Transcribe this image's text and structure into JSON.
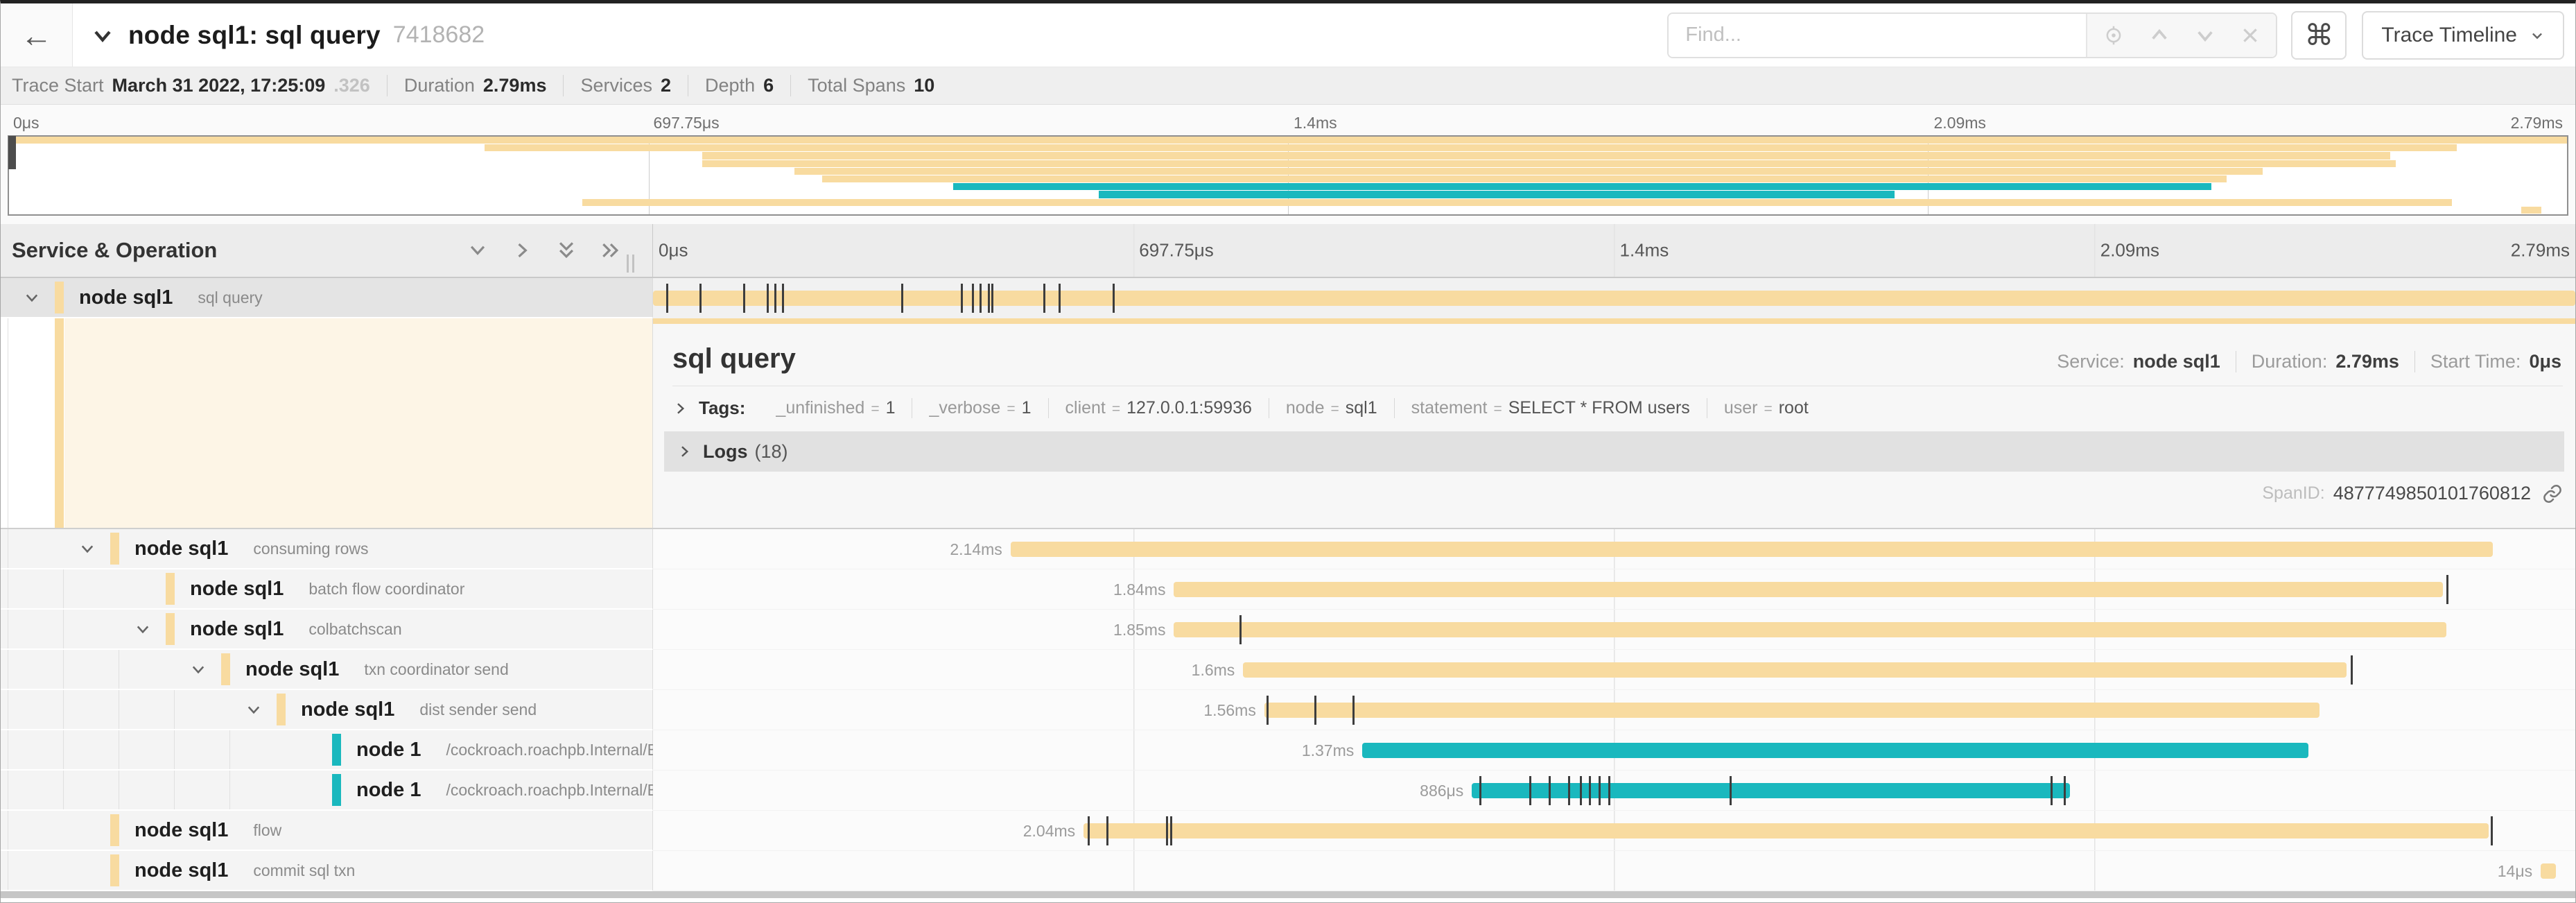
{
  "colors": {
    "tan": "#F8DBA0",
    "teal": "#1AB8BE"
  },
  "header": {
    "back_label": "←",
    "title": "node sql1: sql query",
    "trace_id": "7418682",
    "find_placeholder": "Find...",
    "cmd_symbol": "⌘",
    "view_button": "Trace Timeline"
  },
  "trace_info": {
    "start_label": "Trace Start",
    "start_value": "March 31 2022, 17:25:09",
    "start_ms": ".326",
    "duration_label": "Duration",
    "duration_value": "2.79ms",
    "services_label": "Services",
    "services_value": "2",
    "depth_label": "Depth",
    "depth_value": "6",
    "spans_label": "Total Spans",
    "spans_value": "10"
  },
  "ruler": {
    "ticks": [
      "0μs",
      "697.75μs",
      "1.4ms",
      "2.09ms",
      "2.79ms"
    ]
  },
  "timeline": {
    "header_label": "Service & Operation",
    "rows": [
      {
        "service": "node sql1",
        "operation": "sql query",
        "depth": 0,
        "expander": true,
        "color": "tan",
        "selected": true,
        "bar": {
          "s": 0,
          "e": 100
        },
        "ticks": [
          0.7,
          2.4,
          4.7,
          5.9,
          6.3,
          6.7,
          12.9,
          16.0,
          16.6,
          17.0,
          17.4,
          17.6,
          20.3,
          21.1,
          23.9
        ]
      },
      {
        "service": "node sql1",
        "operation": "consuming rows",
        "depth": 1,
        "expander": true,
        "color": "tan",
        "duration": "2.14ms",
        "bar": {
          "s": 18.6,
          "e": 95.7
        },
        "ticks": []
      },
      {
        "service": "node sql1",
        "operation": "batch flow coordinator",
        "depth": 2,
        "expander": false,
        "color": "tan",
        "duration": "1.84ms",
        "bar": {
          "s": 27.1,
          "e": 93.1
        },
        "ticks": [
          93.3
        ]
      },
      {
        "service": "node sql1",
        "operation": "colbatchscan",
        "depth": 2,
        "expander": true,
        "color": "tan",
        "duration": "1.85ms",
        "bar": {
          "s": 27.1,
          "e": 93.3
        },
        "ticks": [
          30.5
        ]
      },
      {
        "service": "node sql1",
        "operation": "txn coordinator send",
        "depth": 3,
        "expander": true,
        "color": "tan",
        "duration": "1.6ms",
        "bar": {
          "s": 30.7,
          "e": 88.1
        },
        "ticks": [
          88.3
        ]
      },
      {
        "service": "node sql1",
        "operation": "dist sender send",
        "depth": 4,
        "expander": true,
        "color": "tan",
        "duration": "1.56ms",
        "bar": {
          "s": 31.8,
          "e": 86.7
        },
        "ticks": [
          31.9,
          34.4,
          36.4
        ]
      },
      {
        "service": "node 1",
        "operation": "/cockroach.roachpb.Internal/Batch",
        "depth": 5,
        "expander": false,
        "color": "teal",
        "duration": "1.37ms",
        "bar": {
          "s": 36.9,
          "e": 86.1
        },
        "ticks": []
      },
      {
        "service": "node 1",
        "operation": "/cockroach.roachpb.Internal/Batch",
        "depth": 5,
        "expander": false,
        "color": "teal",
        "duration": "886μs",
        "bar": {
          "s": 42.6,
          "e": 73.7
        },
        "ticks": [
          43.0,
          45.6,
          46.6,
          47.6,
          48.2,
          48.7,
          49.2,
          49.7,
          56.0,
          72.7,
          73.4
        ]
      },
      {
        "service": "node sql1",
        "operation": "flow",
        "depth": 1,
        "expander": false,
        "color": "tan",
        "duration": "2.04ms",
        "bar": {
          "s": 22.4,
          "e": 95.5
        },
        "ticks": [
          22.6,
          23.6,
          26.7,
          26.9,
          95.6
        ]
      },
      {
        "service": "node sql1",
        "operation": "commit sql txn",
        "depth": 1,
        "expander": false,
        "color": "tan",
        "duration": "14μs",
        "bar": {
          "s": 98.2,
          "e": 99.0
        },
        "ticks": []
      }
    ]
  },
  "detail": {
    "title": "sql query",
    "service_label": "Service:",
    "service": "node sql1",
    "duration_label": "Duration:",
    "duration": "2.79ms",
    "start_label": "Start Time:",
    "start": "0μs",
    "tags_label": "Tags:",
    "tags": [
      {
        "k": "_unfinished",
        "v": "1"
      },
      {
        "k": "_verbose",
        "v": "1"
      },
      {
        "k": "client",
        "v": "127.0.0.1:59936"
      },
      {
        "k": "node",
        "v": "sql1"
      },
      {
        "k": "statement",
        "v": "SELECT * FROM users"
      },
      {
        "k": "user",
        "v": "root"
      }
    ],
    "logs_label": "Logs",
    "logs_count": "(18)",
    "spanid_label": "SpanID:",
    "span_id": "4877749850101760812"
  }
}
